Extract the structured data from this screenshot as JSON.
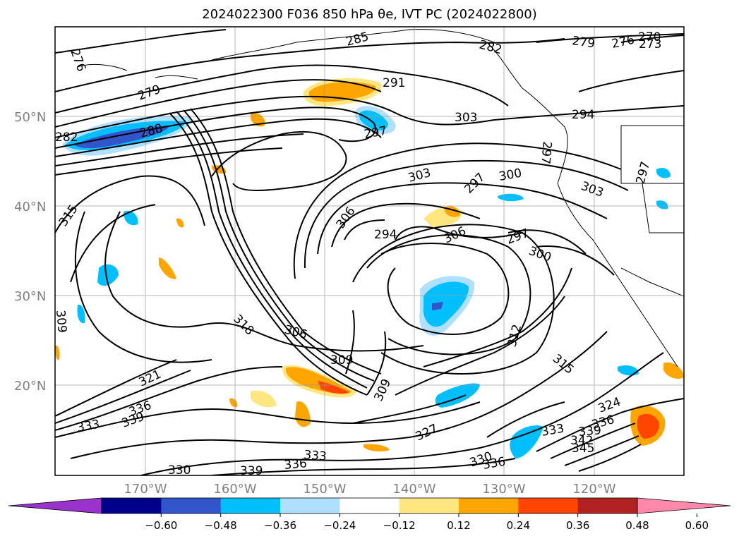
{
  "title": "2024022300 F036 850 hPa θe, IVT PC (2024022800)",
  "lat_labels": [
    "50°N",
    "40°N",
    "30°N",
    "20°N"
  ],
  "lon_labels": [
    "170°W",
    "160°W",
    "150°W",
    "140°W",
    "130°W",
    "120°W"
  ],
  "colorbar": {
    "colors": [
      "#9933cc",
      "#00008b",
      "#3355cc",
      "#00bfff",
      "#b0e0ff",
      "#ffffff",
      "#ffe680",
      "#ffa500",
      "#ff4500",
      "#b22222",
      "#ff88aa"
    ],
    "ticks": [
      "−0.60",
      "−0.48",
      "−0.36",
      "−0.24",
      "−0.12",
      "0.12",
      "0.24",
      "0.36",
      "0.48",
      "0.60"
    ]
  },
  "contour_labels": [
    "276",
    "285",
    "282",
    "279",
    "276",
    "273",
    "270",
    "279",
    "291",
    "303",
    "294",
    "282",
    "288",
    "297",
    "297",
    "303",
    "297",
    "300",
    "303",
    "297",
    "315",
    "306",
    "294",
    "306",
    "297",
    "300",
    "318",
    "306",
    "309",
    "312",
    "315",
    "309",
    "321",
    "336",
    "339",
    "333",
    "327",
    "333",
    "324",
    "336",
    "339",
    "342",
    "345",
    "330",
    "336",
    "333",
    "336",
    "339",
    "330",
    "309"
  ]
}
